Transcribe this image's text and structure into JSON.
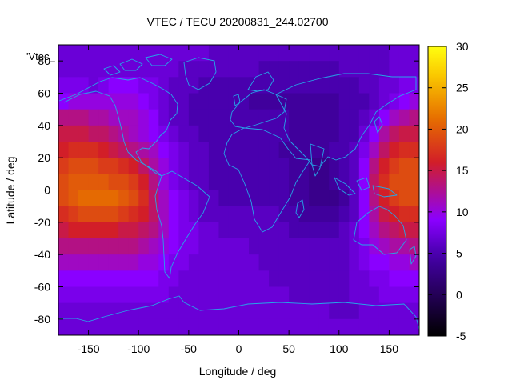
{
  "chart_data": {
    "type": "heatmap",
    "title": "VTEC / TECU 20200831_244.02700",
    "xlabel": "Longitude / deg",
    "ylabel": "Latitude / deg",
    "key_label": "'Vtec_",
    "xlim": [
      -180,
      180
    ],
    "ylim": [
      -90,
      90
    ],
    "x_ticks": [
      -150,
      -100,
      -50,
      0,
      50,
      100,
      150
    ],
    "y_ticks": [
      -80,
      -60,
      -40,
      -20,
      0,
      20,
      40,
      60,
      80
    ],
    "colorbar": {
      "range": [
        -5,
        30
      ],
      "ticks": [
        -5,
        0,
        5,
        10,
        15,
        20,
        25,
        30
      ]
    },
    "grid": false,
    "lon_centers": [
      -175,
      -165,
      -155,
      -145,
      -135,
      -125,
      -115,
      -105,
      -95,
      -85,
      -75,
      -65,
      -55,
      -45,
      -35,
      -25,
      -15,
      -5,
      5,
      15,
      25,
      35,
      45,
      55,
      65,
      75,
      85,
      95,
      105,
      115,
      125,
      135,
      145,
      155,
      165,
      175
    ],
    "lat_centers": [
      85,
      75,
      65,
      55,
      45,
      35,
      25,
      15,
      5,
      -5,
      -15,
      -25,
      -35,
      -45,
      -55,
      -65,
      -75,
      -85
    ],
    "values": [
      [
        7,
        7,
        7,
        7,
        7,
        7,
        7,
        7,
        7,
        7,
        7,
        7,
        7,
        7,
        7,
        6,
        6,
        6,
        6,
        6,
        6,
        6,
        6,
        6,
        6,
        6,
        6,
        6,
        6,
        6,
        6,
        6,
        6,
        7,
        7,
        7
      ],
      [
        7,
        7,
        7,
        7,
        7,
        7,
        7,
        7,
        7,
        7,
        7,
        7,
        6,
        6,
        6,
        6,
        6,
        6,
        6,
        6,
        5,
        5,
        5,
        5,
        5,
        5,
        5,
        5,
        6,
        6,
        6,
        6,
        6,
        7,
        7,
        7
      ],
      [
        8,
        8,
        8,
        7,
        8,
        9,
        9,
        9,
        8,
        8,
        7,
        6,
        6,
        6,
        5,
        5,
        5,
        5,
        5,
        5,
        5,
        5,
        5,
        5,
        5,
        5,
        5,
        5,
        5,
        5,
        6,
        6,
        7,
        7,
        8,
        8
      ],
      [
        9,
        10,
        10,
        10,
        10,
        10,
        10,
        10,
        9,
        8,
        7,
        6,
        6,
        5,
        5,
        5,
        5,
        5,
        5,
        4,
        4,
        4,
        4,
        4,
        4,
        4,
        4,
        4,
        5,
        5,
        5,
        6,
        7,
        8,
        9,
        10
      ],
      [
        13,
        13,
        13,
        12,
        12,
        11,
        11,
        11,
        10,
        9,
        7,
        6,
        6,
        5,
        5,
        5,
        5,
        5,
        5,
        5,
        5,
        5,
        5,
        4,
        4,
        4,
        4,
        4,
        5,
        5,
        6,
        7,
        9,
        11,
        12,
        13
      ],
      [
        15,
        15,
        15,
        14,
        14,
        13,
        12,
        11,
        10,
        9,
        8,
        7,
        6,
        6,
        5,
        5,
        5,
        5,
        5,
        5,
        5,
        5,
        5,
        4,
        4,
        4,
        4,
        4,
        5,
        5,
        7,
        9,
        12,
        14,
        15,
        15
      ],
      [
        16,
        17,
        17,
        17,
        16,
        15,
        14,
        13,
        12,
        11,
        9,
        8,
        7,
        6,
        6,
        5,
        5,
        5,
        5,
        5,
        5,
        5,
        4,
        4,
        4,
        4,
        4,
        5,
        5,
        6,
        8,
        11,
        14,
        16,
        17,
        17
      ],
      [
        18,
        19,
        19,
        19,
        18,
        18,
        17,
        16,
        14,
        12,
        10,
        8,
        7,
        6,
        6,
        5,
        5,
        5,
        5,
        5,
        5,
        5,
        5,
        4,
        4,
        3,
        3,
        4,
        5,
        6,
        9,
        13,
        16,
        18,
        19,
        19
      ],
      [
        19,
        20,
        20,
        20,
        20,
        19,
        19,
        18,
        16,
        13,
        10,
        8,
        7,
        6,
        6,
        5,
        5,
        5,
        5,
        5,
        5,
        5,
        5,
        4,
        4,
        3,
        3,
        4,
        5,
        6,
        9,
        14,
        17,
        19,
        19,
        19
      ],
      [
        19,
        20,
        21,
        21,
        21,
        21,
        20,
        19,
        17,
        14,
        11,
        9,
        8,
        7,
        6,
        6,
        5,
        5,
        5,
        5,
        5,
        5,
        5,
        4,
        4,
        3,
        3,
        3,
        4,
        6,
        9,
        13,
        16,
        18,
        19,
        19
      ],
      [
        17,
        18,
        19,
        19,
        19,
        19,
        18,
        17,
        16,
        14,
        11,
        9,
        8,
        7,
        6,
        6,
        6,
        6,
        6,
        6,
        6,
        6,
        5,
        5,
        4,
        4,
        4,
        4,
        5,
        6,
        9,
        12,
        15,
        16,
        17,
        17
      ],
      [
        15,
        16,
        16,
        16,
        16,
        16,
        15,
        15,
        14,
        13,
        11,
        9,
        8,
        8,
        7,
        7,
        6,
        6,
        6,
        6,
        6,
        6,
        6,
        5,
        5,
        5,
        5,
        5,
        6,
        7,
        9,
        11,
        13,
        14,
        15,
        15
      ],
      [
        13,
        13,
        13,
        13,
        13,
        13,
        13,
        13,
        12,
        11,
        10,
        9,
        8,
        8,
        7,
        7,
        7,
        7,
        7,
        6,
        6,
        6,
        6,
        6,
        6,
        6,
        6,
        6,
        6,
        7,
        8,
        10,
        11,
        12,
        12,
        13
      ],
      [
        11,
        11,
        11,
        11,
        11,
        11,
        11,
        11,
        10,
        10,
        9,
        8,
        8,
        7,
        7,
        7,
        7,
        7,
        7,
        7,
        6,
        6,
        6,
        6,
        6,
        6,
        6,
        6,
        6,
        7,
        8,
        9,
        9,
        10,
        10,
        11
      ],
      [
        9,
        9,
        9,
        9,
        9,
        9,
        9,
        9,
        9,
        9,
        8,
        8,
        7,
        7,
        7,
        7,
        7,
        7,
        7,
        7,
        7,
        6,
        6,
        6,
        6,
        6,
        6,
        6,
        6,
        7,
        7,
        8,
        8,
        9,
        9,
        9
      ],
      [
        8,
        8,
        8,
        8,
        8,
        8,
        8,
        8,
        8,
        8,
        8,
        7,
        7,
        7,
        7,
        7,
        7,
        7,
        7,
        7,
        7,
        7,
        7,
        6,
        6,
        6,
        6,
        6,
        6,
        7,
        7,
        7,
        8,
        8,
        8,
        8
      ],
      [
        7,
        7,
        7,
        7,
        7,
        7,
        7,
        7,
        7,
        7,
        7,
        7,
        7,
        7,
        7,
        7,
        7,
        7,
        7,
        7,
        7,
        7,
        7,
        7,
        7,
        7,
        7,
        6,
        6,
        6,
        7,
        7,
        7,
        7,
        7,
        7
      ],
      [
        7,
        7,
        7,
        7,
        7,
        7,
        7,
        7,
        7,
        7,
        7,
        7,
        7,
        7,
        7,
        7,
        7,
        7,
        7,
        7,
        7,
        7,
        7,
        7,
        7,
        7,
        7,
        7,
        7,
        7,
        7,
        7,
        7,
        7,
        7,
        7
      ]
    ]
  },
  "colors": {
    "coastline": "#25a6e8",
    "cmap_low": "#000000",
    "cmap_mid": "#8a00ff",
    "cmap_high": "#ffff10"
  }
}
